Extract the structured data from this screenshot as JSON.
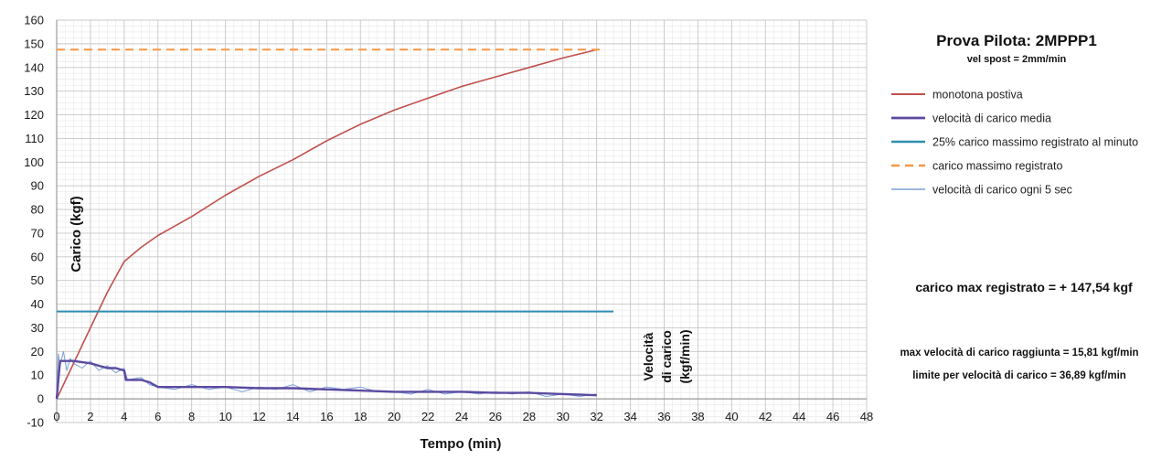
{
  "chart_data": {
    "type": "line",
    "title": "Prova Pilota: 2MPPP1",
    "subtitle": "vel spost = 2mm/min",
    "xlabel": "Tempo (min)",
    "ylabel": "Carico (kgf)",
    "ylabel2": "Velocità di carico (kgf/min)",
    "ylabel2_lines": [
      "Velocità",
      "di carico",
      "(kgf/min)"
    ],
    "xlim": [
      0,
      48
    ],
    "ylim": [
      -10,
      160
    ],
    "xticks": [
      "0",
      "2",
      "4",
      "6",
      "8",
      "10",
      "12",
      "14",
      "16",
      "18",
      "20",
      "22",
      "24",
      "26",
      "28",
      "30",
      "32",
      "34",
      "36",
      "38",
      "40",
      "42",
      "44",
      "46",
      "48"
    ],
    "yticks": [
      "-10",
      "0",
      "10",
      "20",
      "30",
      "40",
      "50",
      "60",
      "70",
      "80",
      "90",
      "100",
      "110",
      "120",
      "130",
      "140",
      "150",
      "160"
    ],
    "grid": true,
    "legend_position": "right",
    "series": [
      {
        "name": "monotona postiva",
        "color": "#c0504d",
        "style": "solid",
        "x": [
          0,
          1,
          2,
          3,
          4,
          5,
          6,
          8,
          10,
          12,
          14,
          16,
          18,
          20,
          22,
          24,
          26,
          28,
          30,
          32
        ],
        "y": [
          0,
          15,
          30,
          45,
          58,
          64,
          69,
          77,
          86,
          94,
          101,
          109,
          116,
          122,
          127,
          132,
          136,
          140,
          144,
          147.5
        ]
      },
      {
        "name": "velocità di carico media",
        "color": "#5b4aa0",
        "style": "solid",
        "x": [
          0,
          0.2,
          1,
          2,
          3,
          3.5,
          4,
          4.1,
          5,
          5.5,
          6,
          8,
          10,
          12,
          14,
          16,
          18,
          20,
          22,
          24,
          26,
          28,
          30,
          32
        ],
        "y": [
          0,
          16,
          16,
          15,
          13,
          13,
          12,
          8,
          8,
          7,
          5,
          5,
          5,
          4.5,
          4.5,
          4,
          3.5,
          3,
          3,
          3,
          2.5,
          2.5,
          2,
          1.5
        ]
      },
      {
        "name": "25% carico massimo registrato al minuto",
        "color": "#2e8fb0",
        "style": "solid",
        "x": [
          0,
          33
        ],
        "y": [
          36.89,
          36.89
        ]
      },
      {
        "name": "carico massimo registrato",
        "color": "#f79646",
        "style": "dashed",
        "x": [
          0,
          32.5
        ],
        "y": [
          147.54,
          147.54
        ]
      },
      {
        "name": "velocità di carico ogni 5 sec",
        "color": "#7a9fd8",
        "style": "solid",
        "x": [
          0,
          0.1,
          0.2,
          0.4,
          0.6,
          0.8,
          1,
          1.5,
          2,
          2.5,
          3,
          3.5,
          4,
          4.2,
          5,
          5.5,
          6,
          7,
          8,
          9,
          10,
          11,
          12,
          13,
          14,
          15,
          16,
          17,
          18,
          19,
          20,
          21,
          22,
          23,
          24,
          25,
          26,
          27,
          28,
          29,
          30,
          31,
          32
        ],
        "y": [
          0,
          19,
          14,
          20,
          12,
          17,
          15,
          13,
          16,
          12,
          14,
          11,
          13,
          8,
          9,
          6,
          5,
          4,
          6,
          4,
          5,
          3,
          5,
          4,
          6,
          3,
          5,
          4,
          5,
          3,
          3,
          2,
          4,
          2,
          3,
          2,
          3,
          2,
          3,
          1,
          2,
          1,
          2
        ]
      }
    ]
  },
  "info": {
    "carico_max": "carico max registrato = + 147,54 kgf",
    "max_vel": "max velocità di carico raggiunta = 15,81 kgf/min",
    "limite": "limite per velocità di carico = 36,89 kgf/min"
  }
}
